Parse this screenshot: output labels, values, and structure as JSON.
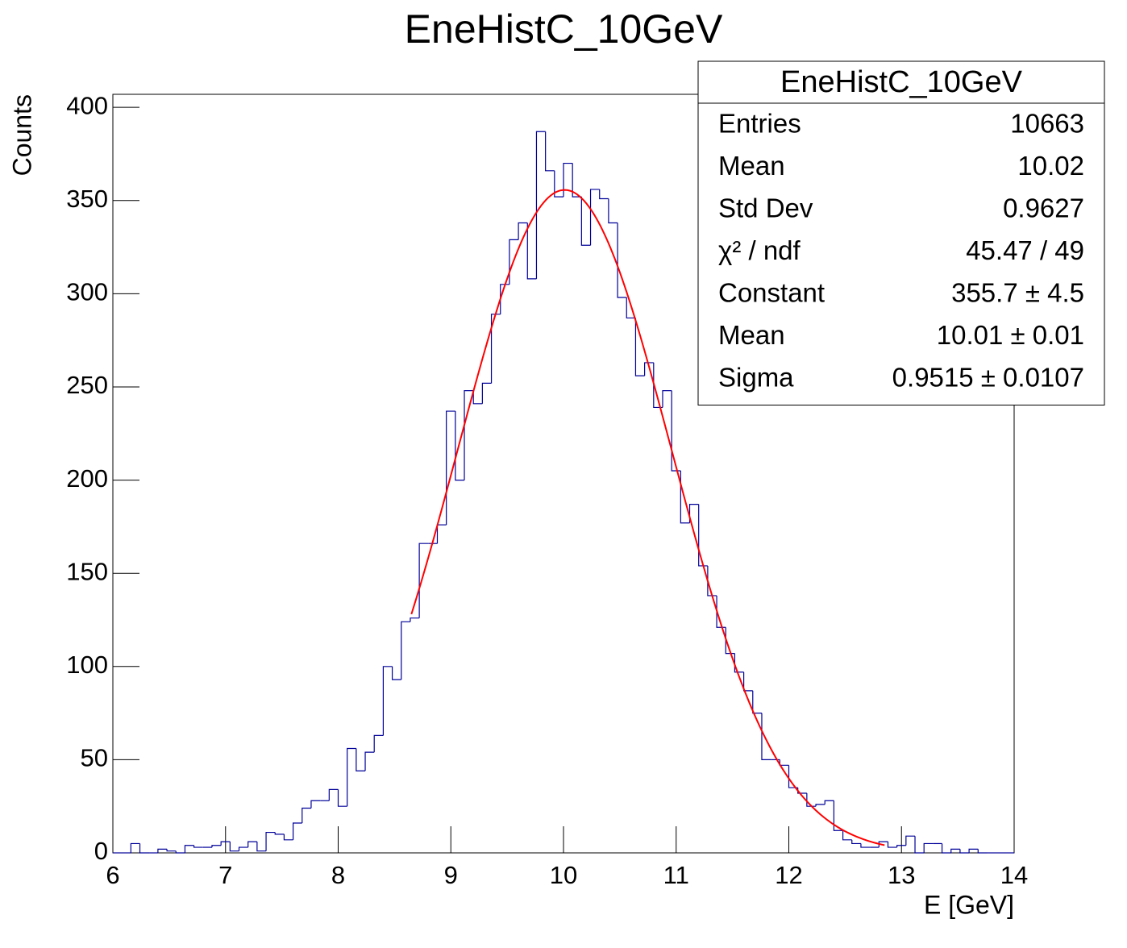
{
  "chart_data": {
    "type": "histogram",
    "title": "EneHistC_10GeV",
    "x_label": "E [GeV]",
    "y_label": "Counts",
    "color": "#000099",
    "bins": [
      6,
      6.08,
      6.16,
      6.24,
      6.32,
      6.4,
      6.48,
      6.56,
      6.64,
      6.72,
      6.8,
      6.88,
      6.96,
      7.04,
      7.12,
      7.2,
      7.28,
      7.36,
      7.44,
      7.52,
      7.6,
      7.68,
      7.76,
      7.84,
      7.92,
      8,
      8.08,
      8.16,
      8.24,
      8.32,
      8.4,
      8.48,
      8.56,
      8.64,
      8.72,
      8.8,
      8.88,
      8.96,
      9.04,
      9.12,
      9.2,
      9.28,
      9.36,
      9.44,
      9.52,
      9.6,
      9.68,
      9.76,
      9.84,
      9.92,
      10,
      10.08,
      10.16,
      10.24,
      10.32,
      10.4,
      10.48,
      10.56,
      10.64,
      10.72,
      10.8,
      10.88,
      10.96,
      11.04,
      11.12,
      11.2,
      11.28,
      11.36,
      11.44,
      11.52,
      11.6,
      11.68,
      11.76,
      11.84,
      11.92,
      12,
      12.08,
      12.16,
      12.24,
      12.32,
      12.4,
      12.48,
      12.56,
      12.64,
      12.72,
      12.8,
      12.88,
      12.96,
      13.04,
      13.12,
      13.2,
      13.28,
      13.36,
      13.44,
      13.52,
      13.6,
      13.68,
      13.76,
      13.84,
      13.92,
      14
    ],
    "values": [
      0,
      0,
      5,
      0,
      0,
      2,
      1,
      0,
      4,
      3,
      3,
      4,
      6,
      1,
      3,
      6,
      1,
      11,
      10,
      7,
      16,
      24,
      28,
      28,
      34,
      25,
      56,
      44,
      54,
      63,
      100,
      93,
      124,
      126,
      166,
      166,
      176,
      237,
      200,
      248,
      241,
      252,
      289,
      305,
      329,
      338,
      308,
      387,
      366,
      352,
      370,
      352,
      326,
      356,
      351,
      338,
      298,
      287,
      256,
      263,
      239,
      248,
      205,
      177,
      187,
      154,
      138,
      121,
      107,
      97,
      87,
      75,
      50,
      50,
      47,
      35,
      32,
      25,
      26,
      28,
      12,
      7,
      5,
      3,
      3,
      6,
      3,
      4,
      9,
      0,
      5,
      5,
      0,
      2,
      0,
      2,
      0,
      0,
      0,
      0
    ],
    "xlim": [
      6,
      14
    ],
    "ylim": [
      0,
      407
    ],
    "xticks": [
      6,
      7,
      8,
      9,
      10,
      11,
      12,
      13,
      14
    ],
    "yticks": [
      0,
      50,
      100,
      150,
      200,
      250,
      300,
      350,
      400
    ],
    "fit": {
      "function": "gaus",
      "constant": 355.7,
      "mean": 10.01,
      "sigma": 0.9515,
      "xlim": [
        8.65,
        12.85
      ],
      "color": "#ff0000"
    },
    "stats": {
      "title": "EneHistC_10GeV",
      "rows": [
        {
          "label": "Entries",
          "value": 10663
        },
        {
          "label": "Mean",
          "value": 10.02
        },
        {
          "label": "Std Dev",
          "value": 0.9627
        },
        {
          "label": "χ² / ndf",
          "value": "45.47 / 49"
        },
        {
          "label": "Constant",
          "value": "355.7 ± 4.5"
        },
        {
          "label": "Mean",
          "value": "10.01 ± 0.01"
        },
        {
          "label": "Sigma",
          "value": "0.9515 ± 0.0107"
        }
      ]
    }
  }
}
